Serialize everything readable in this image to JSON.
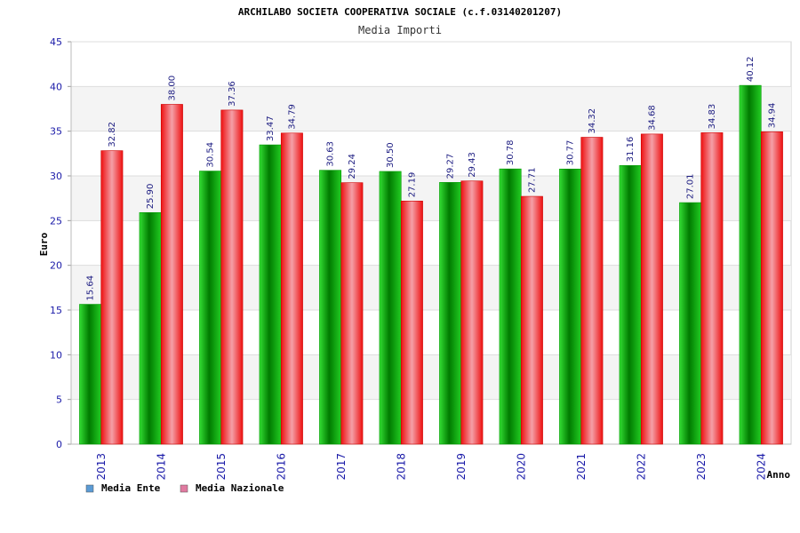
{
  "chart_data": {
    "type": "bar",
    "title": "ARCHILABO SOCIETA COOPERATIVA SOCIALE (c.f.03140201207)",
    "subtitle": "Media Importi",
    "xlabel": "Anno",
    "ylabel": "Euro",
    "ylim": [
      0,
      45
    ],
    "yticks": [
      "0",
      "5",
      "10",
      "15",
      "20",
      "25",
      "30",
      "35",
      "40",
      "45"
    ],
    "grid": true,
    "legend_position": "bottom-left",
    "categories": [
      "2013",
      "2014",
      "2015",
      "2016",
      "2017",
      "2018",
      "2019",
      "2020",
      "2021",
      "2022",
      "2023",
      "2024"
    ],
    "series": [
      {
        "name": "Media Ente",
        "legend_color": "#5b9bd5",
        "bar_color": "#00b000",
        "values": [
          15.64,
          25.9,
          30.54,
          33.47,
          30.63,
          30.5,
          29.27,
          30.78,
          30.77,
          31.16,
          27.01,
          40.12
        ],
        "labels": [
          "15.64",
          "25.90",
          "30.54",
          "33.47",
          "30.63",
          "30.50",
          "29.27",
          "30.78",
          "30.77",
          "31.16",
          "27.01",
          "40.12"
        ]
      },
      {
        "name": "Media Nazionale",
        "legend_color": "#e07aa0",
        "bar_color": "#e8202a",
        "values": [
          32.82,
          38.0,
          37.36,
          34.79,
          29.24,
          27.19,
          29.43,
          27.71,
          34.32,
          34.68,
          34.83,
          34.94
        ],
        "labels": [
          "32.82",
          "38.00",
          "37.36",
          "34.79",
          "29.24",
          "27.19",
          "29.43",
          "27.71",
          "34.32",
          "34.68",
          "34.83",
          "34.94"
        ]
      }
    ]
  }
}
